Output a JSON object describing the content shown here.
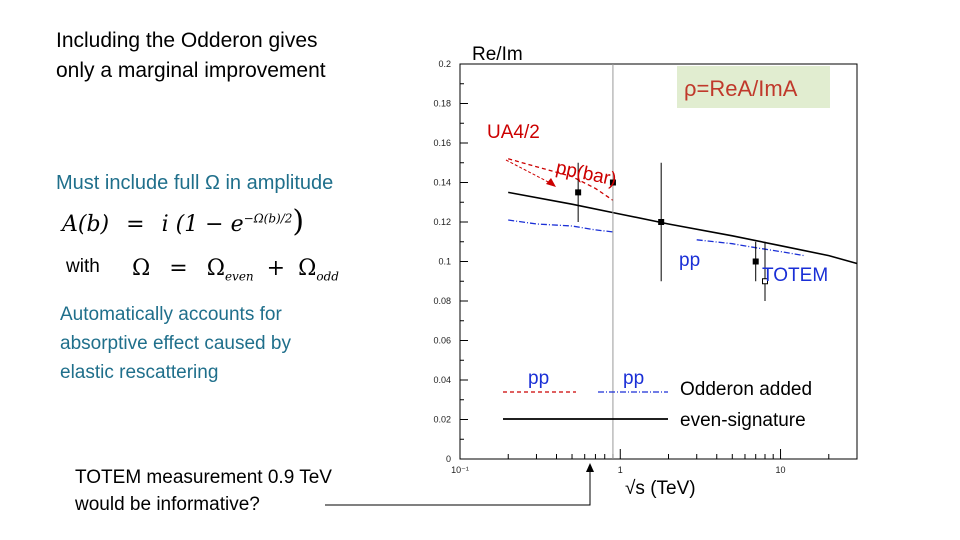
{
  "slide": {
    "title_line1": "Including the Odderon gives",
    "title_line2": "only a marginal improvement",
    "must_include": "Must include full Ω in amplitude",
    "eq1_lhs": "A(b)",
    "eq1_eq": "=",
    "eq1_rhs_a": "i (1 − e",
    "eq1_exp": "−Ω(b)/2",
    "eq1_rhs_b": ")",
    "with_label": "with",
    "eq2_lhs": "Ω",
    "eq2_eq": "=",
    "eq2_term1": "Ω",
    "eq2_sub1": "even",
    "eq2_plus": "+",
    "eq2_term2": "Ω",
    "eq2_sub2": "odd",
    "auto_line1": "Automatically accounts for",
    "auto_line2": "absorptive effect caused by",
    "auto_line3": "elastic rescattering",
    "totem_line1": "TOTEM measurement 0.9 TeV",
    "totem_line2": "would be informative?"
  },
  "chart_data": {
    "type": "line",
    "title": "Re/Im",
    "xlabel": "√s (TeV)",
    "ylabel": "Re/Im",
    "xscale": "log",
    "xlim": [
      0.1,
      30
    ],
    "ylim": [
      0,
      0.2
    ],
    "y_ticks": [
      "0",
      "0.02",
      "0.04",
      "0.06",
      "0.08",
      "0.1",
      "0.12",
      "0.14",
      "0.16",
      "0.18",
      "0.2"
    ],
    "x_ticks": [
      "10⁻¹",
      "1",
      "10"
    ],
    "rho_box": "ρ=ReA/ImA",
    "series": [
      {
        "name": "pp (even-signature)",
        "style": "solid",
        "color": "#000000",
        "x": [
          0.2,
          0.5,
          1,
          2,
          5,
          10,
          20,
          30
        ],
        "y": [
          0.135,
          0.129,
          0.124,
          0.119,
          0.113,
          0.108,
          0.103,
          0.099
        ]
      },
      {
        "name": "pp(bar) Odderon added",
        "style": "dashed",
        "color": "#cc0000",
        "x": [
          0.2,
          0.3,
          0.5,
          0.7,
          0.9
        ],
        "y": [
          0.152,
          0.148,
          0.143,
          0.137,
          0.131
        ]
      },
      {
        "name": "pp Odderon added (low)",
        "style": "dashdot",
        "color": "#1a2fd6",
        "x": [
          0.2,
          0.3,
          0.5,
          0.7,
          0.9
        ],
        "y": [
          0.121,
          0.119,
          0.118,
          0.116,
          0.115
        ]
      },
      {
        "name": "pp Odderon added (high)",
        "style": "dashdot",
        "color": "#1a2fd6",
        "x": [
          3,
          5,
          7,
          10,
          14
        ],
        "y": [
          0.111,
          0.109,
          0.107,
          0.105,
          0.103
        ]
      }
    ],
    "points": [
      {
        "label": "UA4/2",
        "x": 0.546,
        "y": 0.135,
        "err": [
          0.12,
          0.15
        ],
        "marker": "square-filled"
      },
      {
        "label": "pp(bar)",
        "x": 0.9,
        "y": 0.14,
        "err": [
          0.0,
          0.2
        ],
        "marker": "square-filled"
      },
      {
        "label": "pp(bar) 1.8",
        "x": 1.8,
        "y": 0.12,
        "err": [
          0.09,
          0.15
        ],
        "marker": "square-filled"
      },
      {
        "label": "TOTEM",
        "x": 7,
        "y": 0.1,
        "err": [
          0.09,
          0.11
        ],
        "marker": "square-filled"
      },
      {
        "label": "TOTEM 2",
        "x": 8,
        "y": 0.09,
        "err": [
          0.08,
          0.11
        ],
        "marker": "square-open"
      }
    ],
    "annotations": [
      "UA4/2",
      "pp(bar)",
      "pp",
      "TOTEM"
    ],
    "legend": {
      "col1": "pp",
      "col2": "pp",
      "odderon": "Odderon added",
      "even": "even-signature"
    }
  }
}
